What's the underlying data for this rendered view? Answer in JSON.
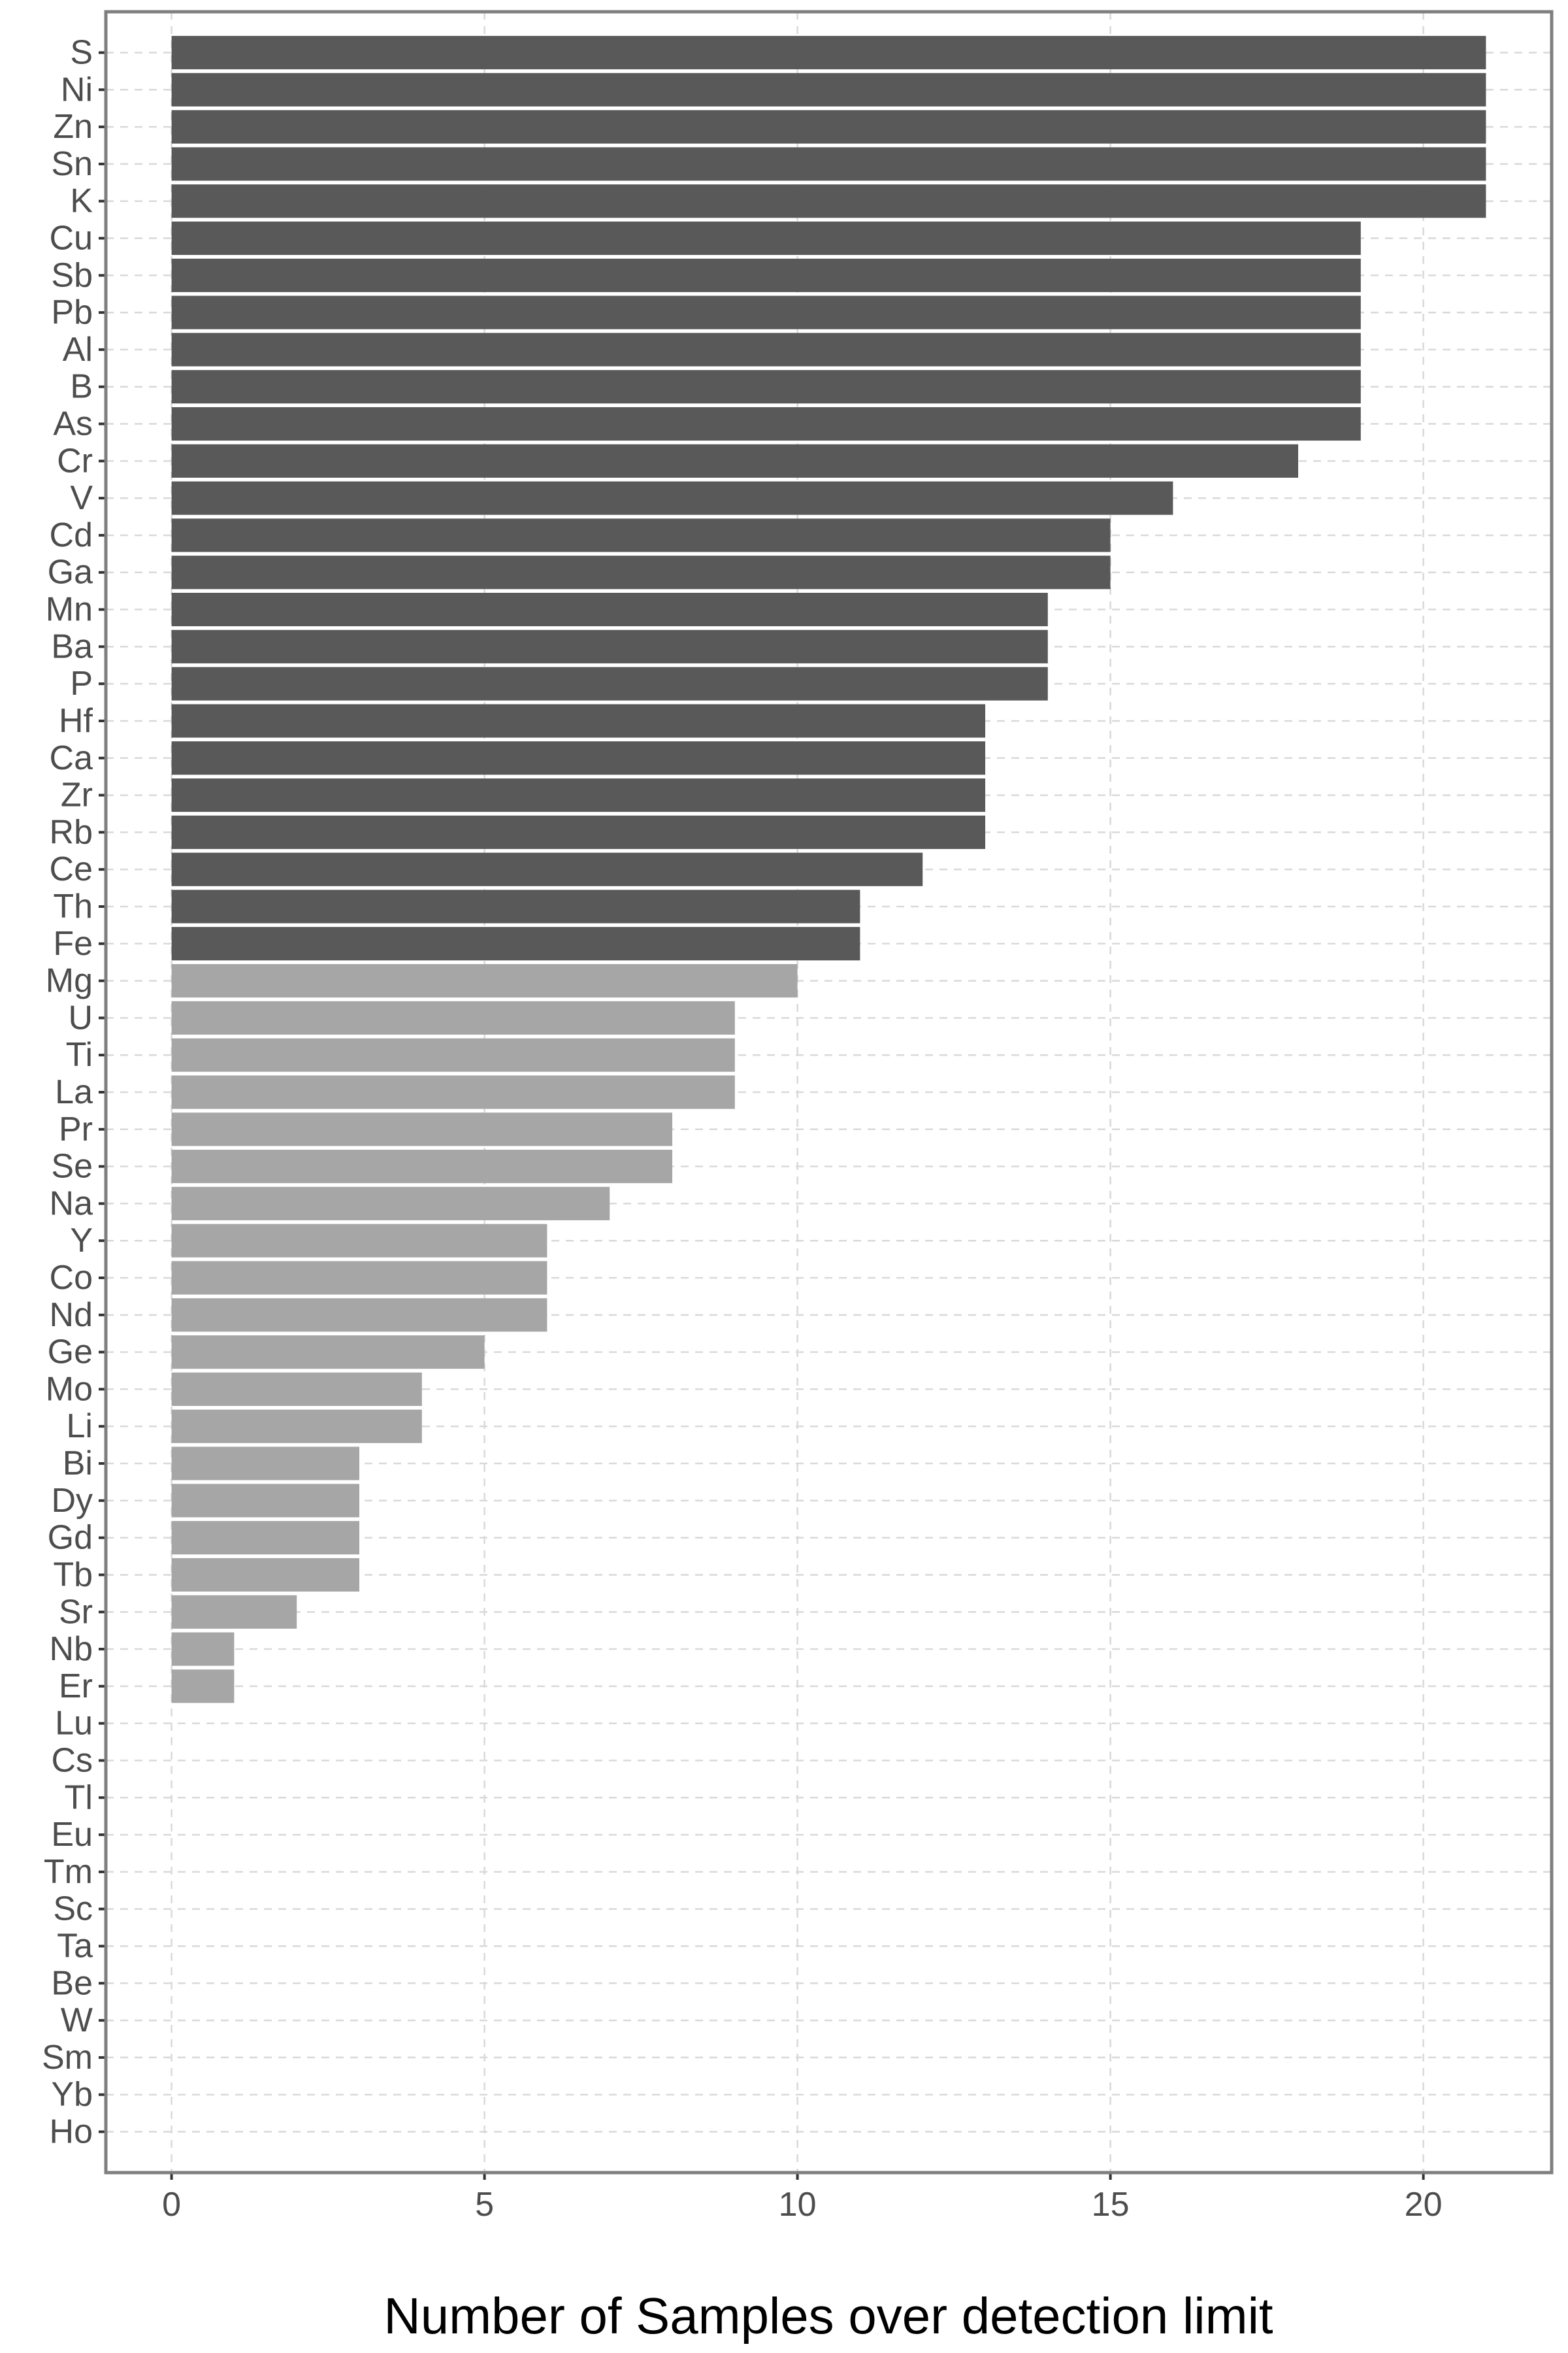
{
  "chart_data": {
    "type": "bar",
    "orientation": "horizontal",
    "title": "",
    "xlabel": "Number of Samples over detection limit",
    "ylabel": "",
    "xlim": [
      -1.05,
      22.05
    ],
    "xticks": [
      0,
      5,
      10,
      15,
      20
    ],
    "threshold": 10.5,
    "colors": {
      "above": "#595959",
      "below": "#a6a6a6",
      "grid": "#d9d9d9",
      "border": "#7f7f7f"
    },
    "grid": true,
    "legend": "none",
    "categories": [
      "S",
      "Ni",
      "Zn",
      "Sn",
      "K",
      "Cu",
      "Sb",
      "Pb",
      "Al",
      "B",
      "As",
      "Cr",
      "V",
      "Cd",
      "Ga",
      "Mn",
      "Ba",
      "P",
      "Hf",
      "Ca",
      "Zr",
      "Rb",
      "Ce",
      "Th",
      "Fe",
      "Mg",
      "U",
      "Ti",
      "La",
      "Pr",
      "Se",
      "Na",
      "Y",
      "Co",
      "Nd",
      "Ge",
      "Mo",
      "Li",
      "Bi",
      "Dy",
      "Gd",
      "Tb",
      "Sr",
      "Nb",
      "Er",
      "Lu",
      "Cs",
      "Tl",
      "Eu",
      "Tm",
      "Sc",
      "Ta",
      "Be",
      "W",
      "Sm",
      "Yb",
      "Ho"
    ],
    "values": [
      21,
      21,
      21,
      21,
      21,
      19,
      19,
      19,
      19,
      19,
      19,
      18,
      16,
      15,
      15,
      14,
      14,
      14,
      13,
      13,
      13,
      13,
      12,
      11,
      11,
      10,
      9,
      9,
      9,
      8,
      8,
      7,
      6,
      6,
      6,
      5,
      4,
      4,
      3,
      3,
      3,
      3,
      2,
      1,
      1,
      0,
      0,
      0,
      0,
      0,
      0,
      0,
      0,
      0,
      0,
      0,
      0
    ]
  }
}
